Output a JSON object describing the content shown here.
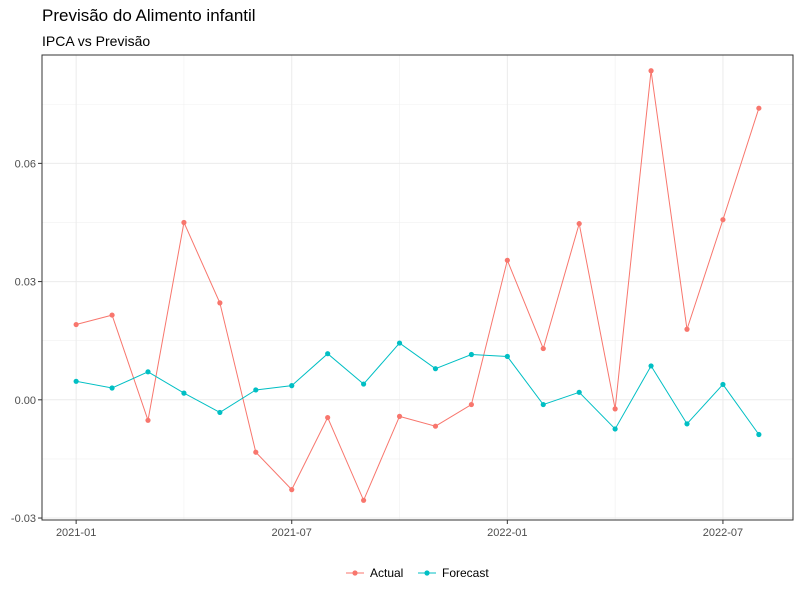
{
  "chart_data": {
    "type": "line",
    "title": "Previsão do Alimento infantil",
    "subtitle": "IPCA vs Previsão",
    "xlabel": "",
    "ylabel": "",
    "x": [
      "2021-01",
      "2021-02",
      "2021-03",
      "2021-04",
      "2021-05",
      "2021-06",
      "2021-07",
      "2021-08",
      "2021-09",
      "2021-10",
      "2021-11",
      "2021-12",
      "2022-01",
      "2022-02",
      "2022-03",
      "2022-04",
      "2022-05",
      "2022-06",
      "2022-07",
      "2022-08"
    ],
    "x_ticks": [
      {
        "date": "2021-01",
        "label": "2021-01"
      },
      {
        "date": "2021-07",
        "label": "2021-07"
      },
      {
        "date": "2022-01",
        "label": "2022-01"
      },
      {
        "date": "2022-07",
        "label": "2022-07"
      }
    ],
    "y_ticks": [
      {
        "value": -0.03,
        "label": "-0.03"
      },
      {
        "value": 0.0,
        "label": "0.00"
      },
      {
        "value": 0.03,
        "label": "0.03"
      },
      {
        "value": 0.06,
        "label": "0.06"
      }
    ],
    "ylim": [
      -0.0305,
      0.0875
    ],
    "grid": true,
    "legend_position": "bottom",
    "series": [
      {
        "name": "Actual",
        "color": "#F8766D",
        "values": [
          0.0191,
          0.0215,
          -0.0052,
          0.045,
          0.0246,
          -0.0133,
          -0.0228,
          -0.0045,
          -0.0255,
          -0.0042,
          -0.0067,
          -0.0012,
          0.0354,
          0.013,
          0.0447,
          -0.0023,
          0.0835,
          0.0179,
          0.0457,
          0.074
        ]
      },
      {
        "name": "Forecast",
        "color": "#00BFC4",
        "values": [
          0.0047,
          0.003,
          0.0071,
          0.0017,
          -0.0032,
          0.0025,
          0.0036,
          0.0117,
          0.004,
          0.0144,
          0.0079,
          0.0115,
          0.011,
          -0.0012,
          0.0019,
          -0.0074,
          0.0086,
          -0.0061,
          0.0039,
          -0.0088
        ]
      }
    ]
  }
}
